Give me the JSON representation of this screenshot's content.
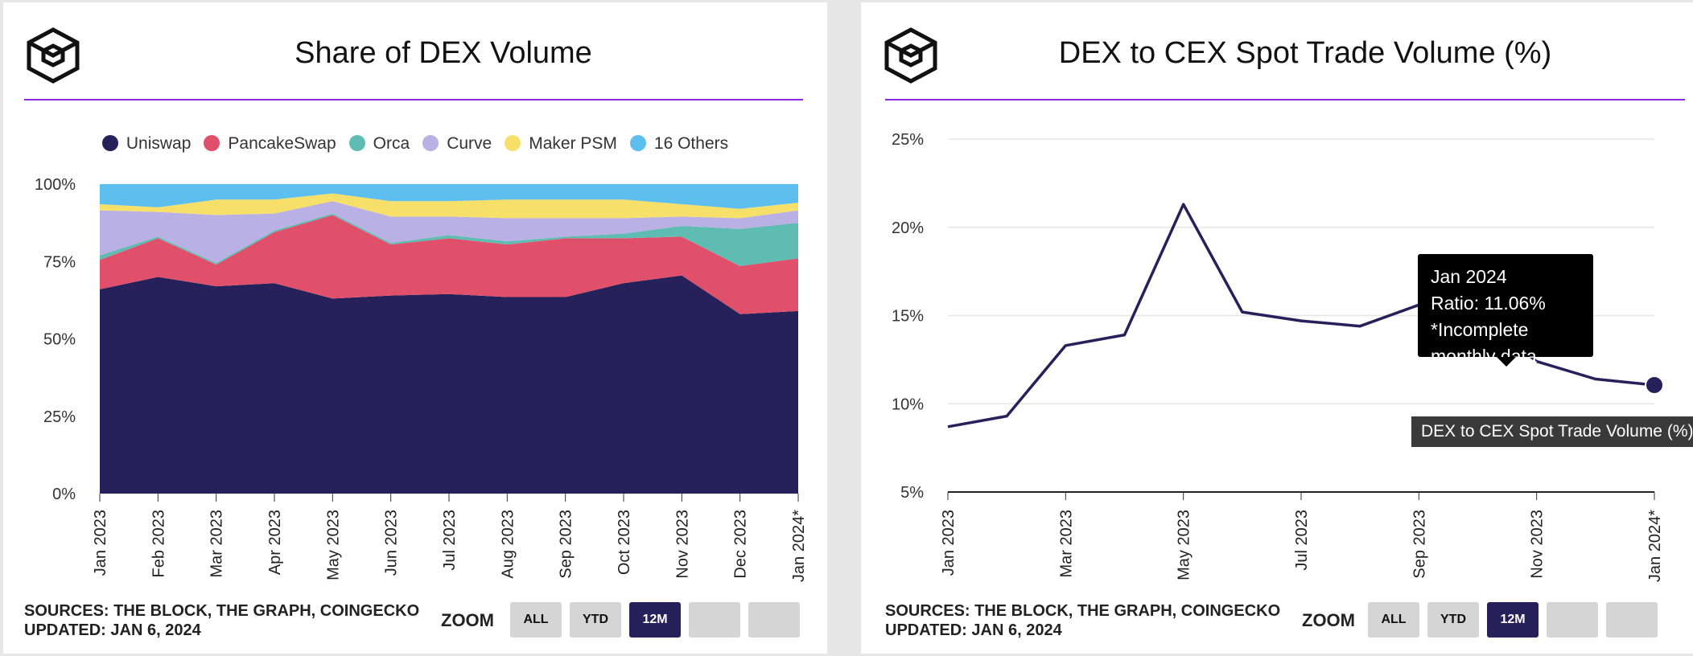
{
  "left_panel": {
    "title": "Share of DEX Volume",
    "sources": "SOURCES: THE BLOCK, THE GRAPH, COINGECKO",
    "updated": "UPDATED: JAN 6, 2024",
    "zoom_label": "ZOOM",
    "zoom_buttons": [
      "ALL",
      "YTD",
      "12M",
      "",
      ""
    ]
  },
  "right_panel": {
    "title": "DEX to CEX Spot Trade Volume (%)",
    "sources": "SOURCES: THE BLOCK, THE GRAPH, COINGECKO",
    "updated": "UPDATED: JAN 6, 2024",
    "zoom_label": "ZOOM",
    "zoom_buttons": [
      "ALL",
      "YTD",
      "12M",
      "",
      ""
    ],
    "tooltip": {
      "date": "Jan 2024",
      "ratio": "Ratio: 11.06%",
      "note": "*Incomplete monthly data"
    },
    "series_label": "DEX to CEX Spot Trade Volume (%)"
  },
  "chart_data": [
    {
      "type": "area",
      "stacked": true,
      "normalized": true,
      "title": "Share of DEX Volume",
      "categories": [
        "Jan 2023",
        "Feb 2023",
        "Mar 2023",
        "Apr 2023",
        "May 2023",
        "Jun 2023",
        "Jul 2023",
        "Aug 2023",
        "Sep 2023",
        "Oct 2023",
        "Nov 2023",
        "Dec 2023",
        "Jan 2024*"
      ],
      "series": [
        {
          "name": "Uniswap",
          "color": "#26215a",
          "values": [
            66,
            70,
            67,
            68,
            63,
            64,
            64.5,
            63.5,
            63.5,
            68,
            70.5,
            58,
            59
          ]
        },
        {
          "name": "PancakeSwap",
          "color": "#e1506a",
          "values": [
            9.5,
            12.5,
            7,
            16.5,
            27,
            16.5,
            18,
            17,
            19,
            14.5,
            12.5,
            15.5,
            17
          ]
        },
        {
          "name": "Orca",
          "color": "#5ebcb2",
          "values": [
            1.5,
            0.5,
            0.5,
            0.5,
            0.5,
            0.5,
            1,
            1,
            0.5,
            1.5,
            3.5,
            12,
            11.5
          ]
        },
        {
          "name": "Curve",
          "color": "#b9b0e3",
          "values": [
            14.5,
            8,
            15.5,
            5.5,
            4,
            8.5,
            6,
            7.5,
            6,
            5,
            3,
            3.5,
            4
          ]
        },
        {
          "name": "Maker PSM",
          "color": "#f7e06a",
          "values": [
            2,
            1.5,
            5,
            4.5,
            2.5,
            5,
            5,
            6,
            6,
            6,
            4,
            3,
            2.5
          ]
        },
        {
          "name": "16 Others",
          "color": "#5cbff0",
          "values": [
            6.5,
            7.5,
            5,
            5,
            3,
            5.5,
            5.5,
            5,
            5,
            5,
            6.5,
            8,
            6
          ]
        }
      ],
      "yticks": [
        "0%",
        "25%",
        "50%",
        "75%",
        "100%"
      ],
      "ylim": [
        0,
        100
      ],
      "legend_position": "top"
    },
    {
      "type": "line",
      "title": "DEX to CEX Spot Trade Volume (%)",
      "categories": [
        "Jan 2023",
        "Feb 2023",
        "Mar 2023",
        "Apr 2023",
        "May 2023",
        "Jun 2023",
        "Jul 2023",
        "Aug 2023",
        "Sep 2023",
        "Oct 2023",
        "Nov 2023",
        "Dec 2023",
        "Jan 2024*"
      ],
      "xtick_labels": [
        "Jan 2023",
        "Mar 2023",
        "May 2023",
        "Jul 2023",
        "Sep 2023",
        "Nov 2023",
        "Jan 2024*"
      ],
      "series": [
        {
          "name": "DEX to CEX Spot Trade Volume (%)",
          "color": "#26215a",
          "values": [
            8.7,
            9.3,
            13.3,
            13.9,
            21.3,
            15.2,
            14.7,
            14.4,
            15.6,
            15.0,
            12.4,
            11.4,
            11.06
          ]
        }
      ],
      "yticks": [
        "5%",
        "10%",
        "15%",
        "20%",
        "25%"
      ],
      "ylim": [
        5,
        25
      ],
      "grid": true,
      "highlight_index": 12
    }
  ]
}
